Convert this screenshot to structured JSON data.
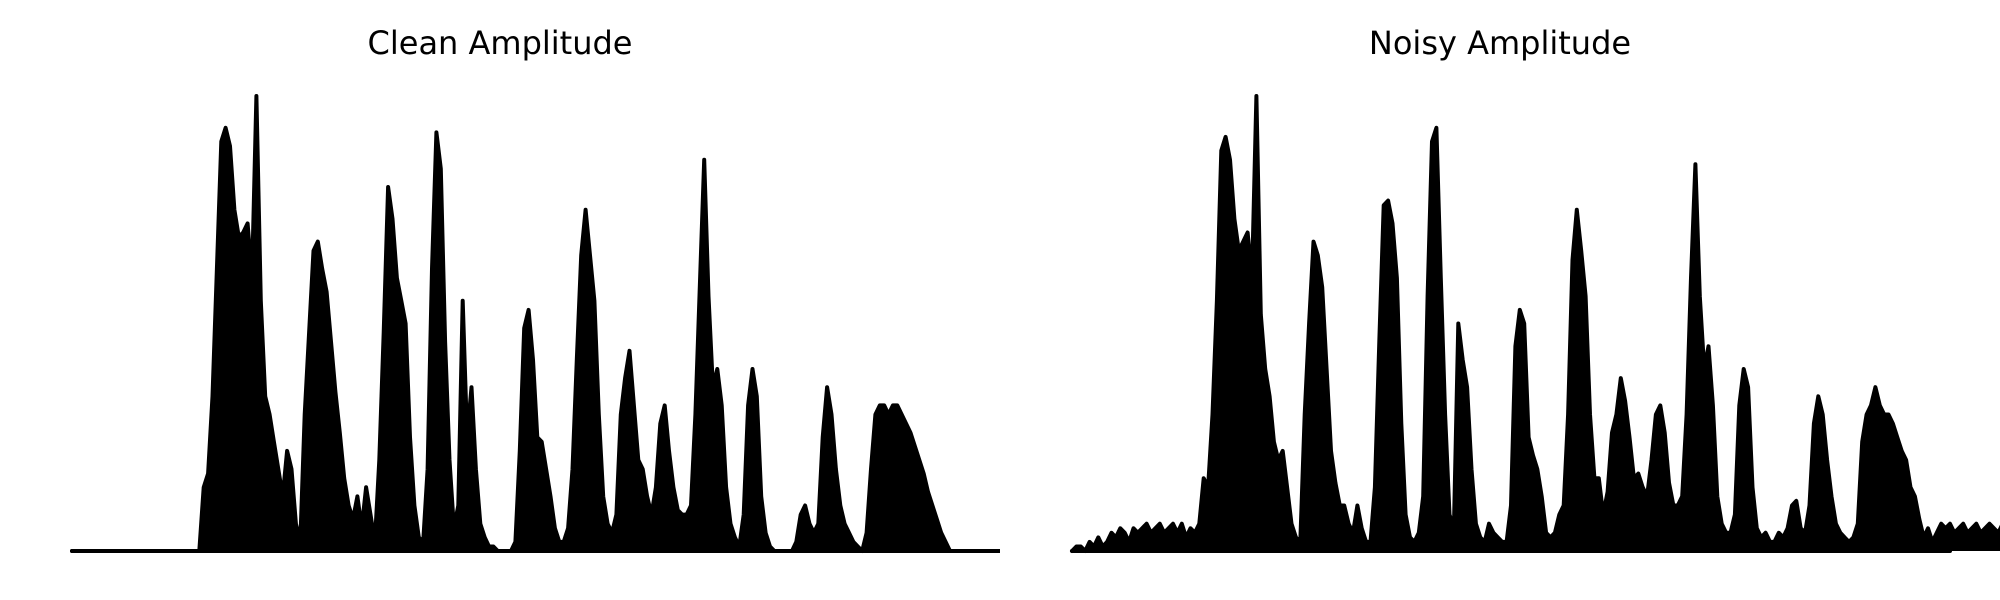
{
  "chart_data": [
    {
      "type": "area",
      "title": "Clean Amplitude",
      "axes_visible": false,
      "grid": false,
      "color": "#000000",
      "xlim": [
        0,
        1000
      ],
      "ylim": [
        0,
        1.0
      ],
      "x_start": 0,
      "x_step": 5,
      "values": [
        0,
        0,
        0,
        0,
        0,
        0,
        0,
        0,
        0,
        0,
        0,
        0,
        0,
        0,
        0,
        0,
        0,
        0,
        0,
        0,
        0,
        0,
        0,
        0,
        0,
        0,
        0,
        0,
        0,
        0,
        0.14,
        0.17,
        0.34,
        0.62,
        0.9,
        0.93,
        0.89,
        0.75,
        0.69,
        0.7,
        0.72,
        0.6,
        1.0,
        0.55,
        0.34,
        0.3,
        0.24,
        0.18,
        0.12,
        0.22,
        0.18,
        0.06,
        0.02,
        0.3,
        0.48,
        0.66,
        0.68,
        0.62,
        0.57,
        0.46,
        0.35,
        0.26,
        0.16,
        0.1,
        0.07,
        0.12,
        0.05,
        0.14,
        0.08,
        0.02,
        0.2,
        0.48,
        0.8,
        0.73,
        0.6,
        0.55,
        0.5,
        0.25,
        0.1,
        0.03,
        0.02,
        0.18,
        0.62,
        0.92,
        0.84,
        0.46,
        0.2,
        0.05,
        0.1,
        0.55,
        0.25,
        0.36,
        0.18,
        0.06,
        0.03,
        0.01,
        0.01,
        0.0,
        0.0,
        0.0,
        0.0,
        0.02,
        0.22,
        0.49,
        0.53,
        0.42,
        0.25,
        0.24,
        0.18,
        0.12,
        0.05,
        0.02,
        0.02,
        0.05,
        0.18,
        0.42,
        0.65,
        0.75,
        0.65,
        0.55,
        0.3,
        0.12,
        0.06,
        0.04,
        0.08,
        0.3,
        0.38,
        0.44,
        0.32,
        0.2,
        0.18,
        0.12,
        0.08,
        0.14,
        0.28,
        0.32,
        0.22,
        0.14,
        0.09,
        0.08,
        0.08,
        0.1,
        0.3,
        0.58,
        0.86,
        0.56,
        0.36,
        0.4,
        0.32,
        0.14,
        0.06,
        0.03,
        0.01,
        0.08,
        0.32,
        0.4,
        0.34,
        0.12,
        0.04,
        0.01,
        0.0,
        0.0,
        0.0,
        0.0,
        0.0,
        0.02,
        0.08,
        0.1,
        0.06,
        0.04,
        0.06,
        0.25,
        0.36,
        0.3,
        0.18,
        0.1,
        0.06,
        0.04,
        0.02,
        0.01,
        0.0,
        0.04,
        0.18,
        0.3,
        0.32,
        0.32,
        0.3,
        0.32,
        0.32,
        0.3,
        0.28,
        0.26,
        0.23,
        0.2,
        0.17,
        0.13,
        0.1,
        0.07,
        0.04,
        0.02,
        0.0,
        0.0,
        0.0,
        0.0,
        0.0,
        0.0,
        0.0,
        0.0,
        0.0,
        0.0,
        0.0,
        0.0,
        0.0,
        0.0,
        0.0,
        0.0,
        0.0,
        0.0,
        0.0,
        0.0,
        0.0,
        0.0,
        0.0,
        0.0,
        0.0,
        0.0,
        0.0,
        0.0,
        0.0,
        0.0,
        0.0,
        0.0,
        0.0,
        0.0,
        0.0,
        0.0
      ]
    },
    {
      "type": "area",
      "title": "Noisy Amplitude",
      "axes_visible": false,
      "grid": false,
      "color": "#000000",
      "xlim": [
        0,
        1000
      ],
      "ylim": [
        0,
        1.0
      ],
      "x_start": 0,
      "x_step": 5,
      "values": [
        0.0,
        0.01,
        0.01,
        0.0,
        0.02,
        0.01,
        0.03,
        0.01,
        0.02,
        0.04,
        0.03,
        0.05,
        0.04,
        0.02,
        0.05,
        0.04,
        0.05,
        0.06,
        0.04,
        0.05,
        0.06,
        0.04,
        0.05,
        0.06,
        0.04,
        0.06,
        0.03,
        0.05,
        0.04,
        0.06,
        0.16,
        0.14,
        0.3,
        0.55,
        0.88,
        0.91,
        0.86,
        0.73,
        0.66,
        0.68,
        0.7,
        0.6,
        1.0,
        0.52,
        0.4,
        0.34,
        0.24,
        0.2,
        0.22,
        0.14,
        0.06,
        0.03,
        0.02,
        0.3,
        0.5,
        0.68,
        0.65,
        0.58,
        0.4,
        0.22,
        0.15,
        0.1,
        0.1,
        0.06,
        0.04,
        0.1,
        0.05,
        0.02,
        0.02,
        0.14,
        0.46,
        0.76,
        0.77,
        0.72,
        0.6,
        0.28,
        0.08,
        0.03,
        0.02,
        0.04,
        0.12,
        0.56,
        0.9,
        0.93,
        0.6,
        0.3,
        0.08,
        0.05,
        0.5,
        0.42,
        0.36,
        0.18,
        0.06,
        0.03,
        0.02,
        0.06,
        0.04,
        0.03,
        0.02,
        0.02,
        0.1,
        0.45,
        0.53,
        0.5,
        0.25,
        0.21,
        0.18,
        0.12,
        0.04,
        0.03,
        0.04,
        0.08,
        0.1,
        0.3,
        0.64,
        0.75,
        0.66,
        0.56,
        0.3,
        0.16,
        0.16,
        0.08,
        0.13,
        0.26,
        0.3,
        0.38,
        0.33,
        0.25,
        0.16,
        0.17,
        0.14,
        0.12,
        0.2,
        0.3,
        0.32,
        0.26,
        0.15,
        0.1,
        0.1,
        0.12,
        0.3,
        0.6,
        0.85,
        0.56,
        0.4,
        0.45,
        0.32,
        0.12,
        0.06,
        0.04,
        0.04,
        0.08,
        0.32,
        0.4,
        0.36,
        0.14,
        0.05,
        0.03,
        0.04,
        0.02,
        0.02,
        0.04,
        0.03,
        0.05,
        0.1,
        0.11,
        0.05,
        0.04,
        0.1,
        0.28,
        0.34,
        0.3,
        0.2,
        0.12,
        0.06,
        0.04,
        0.03,
        0.02,
        0.03,
        0.06,
        0.24,
        0.3,
        0.32,
        0.36,
        0.32,
        0.3,
        0.3,
        0.28,
        0.25,
        0.22,
        0.2,
        0.14,
        0.12,
        0.07,
        0.03,
        0.05,
        0.02,
        0.04,
        0.06,
        0.05,
        0.06,
        0.04,
        0.05,
        0.06,
        0.04,
        0.05,
        0.06,
        0.04,
        0.05,
        0.06,
        0.05,
        0.04,
        0.06,
        0.05,
        0.04,
        0.05,
        0.06,
        0.04,
        0.05,
        0.06,
        0.04,
        0.05,
        0.04,
        0.05,
        0.06,
        0.04,
        0.05,
        0.04,
        0.05,
        0.06,
        0.04,
        0.06,
        0.04,
        0.06
      ]
    }
  ]
}
